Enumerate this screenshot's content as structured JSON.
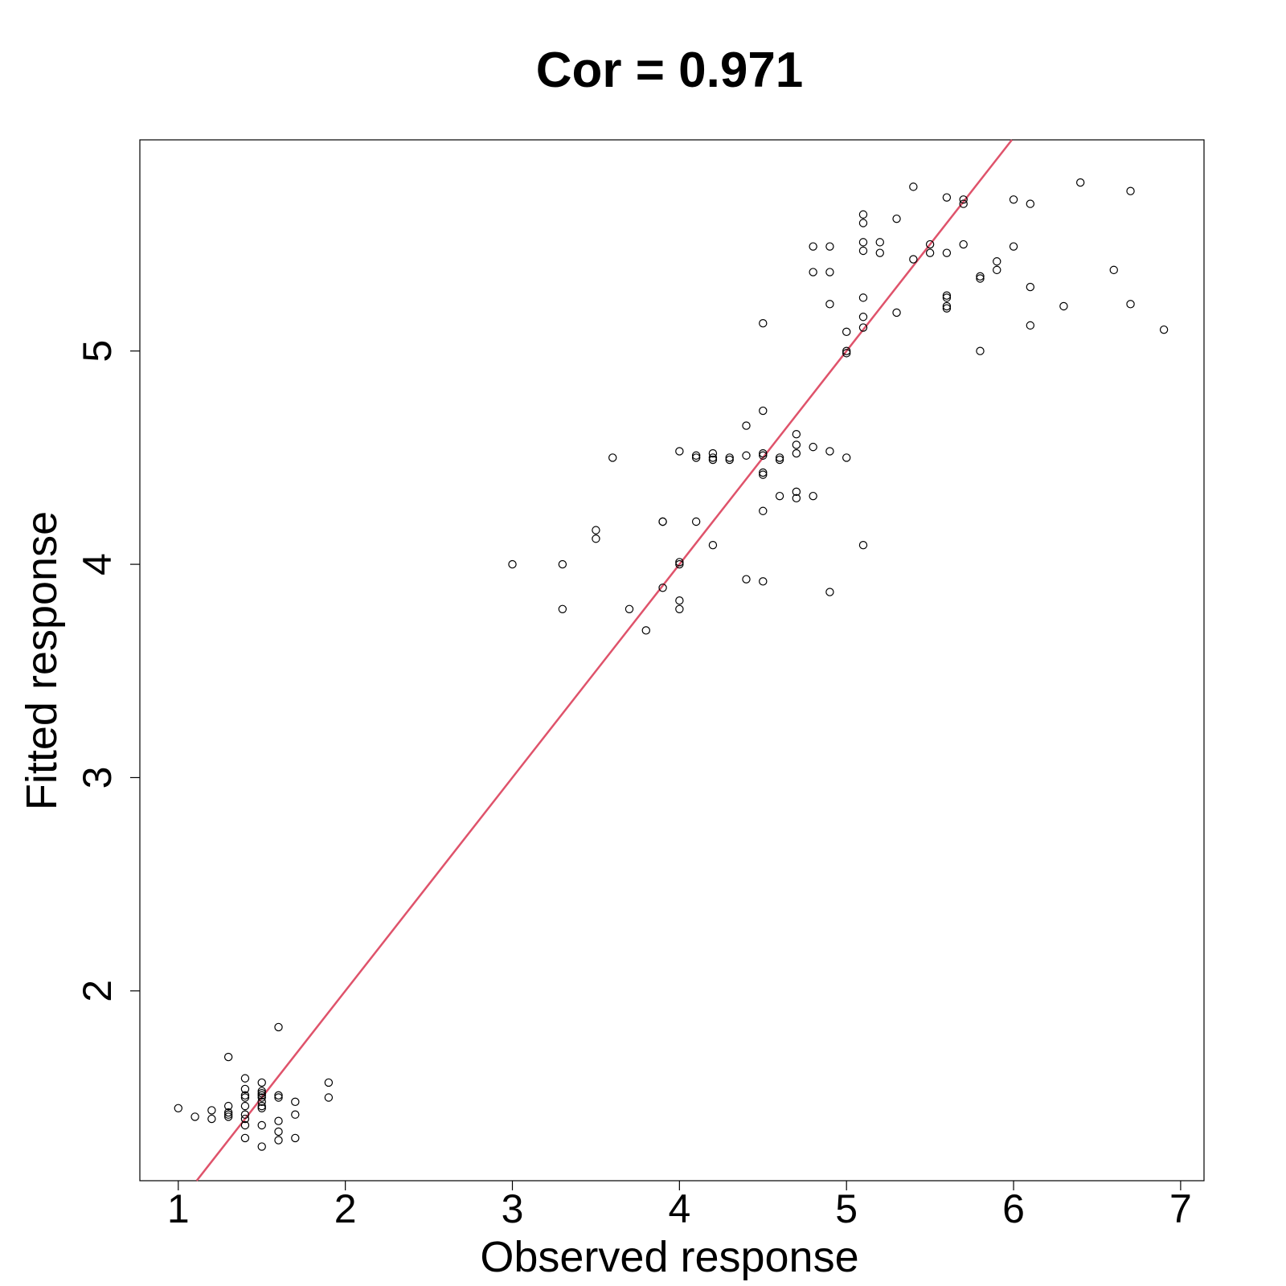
{
  "chart_data": {
    "type": "scatter",
    "title": "Cor = 0.971",
    "xlabel": "Observed response",
    "ylabel": "Fitted response",
    "xlim": [
      0.77,
      7.14
    ],
    "ylim": [
      1.11,
      5.99
    ],
    "x_ticks": [
      1,
      2,
      3,
      4,
      5,
      6,
      7
    ],
    "y_ticks": [
      2,
      3,
      4,
      5
    ],
    "grid": false,
    "legend": "none",
    "reference_line": {
      "intercept": 0,
      "slope": 1,
      "color": "#DF536B"
    },
    "point_color": "#000000",
    "points": [
      [
        1.0,
        1.45
      ],
      [
        1.1,
        1.41
      ],
      [
        1.2,
        1.44
      ],
      [
        1.2,
        1.4
      ],
      [
        1.3,
        1.69
      ],
      [
        1.3,
        1.46
      ],
      [
        1.3,
        1.43
      ],
      [
        1.3,
        1.41
      ],
      [
        1.3,
        1.42
      ],
      [
        1.4,
        1.59
      ],
      [
        1.4,
        1.54
      ],
      [
        1.4,
        1.5
      ],
      [
        1.4,
        1.51
      ],
      [
        1.4,
        1.46
      ],
      [
        1.4,
        1.42
      ],
      [
        1.4,
        1.4
      ],
      [
        1.4,
        1.37
      ],
      [
        1.4,
        1.31
      ],
      [
        1.5,
        1.57
      ],
      [
        1.5,
        1.53
      ],
      [
        1.5,
        1.52
      ],
      [
        1.5,
        1.51
      ],
      [
        1.5,
        1.5
      ],
      [
        1.5,
        1.48
      ],
      [
        1.5,
        1.46
      ],
      [
        1.5,
        1.45
      ],
      [
        1.5,
        1.37
      ],
      [
        1.5,
        1.27
      ],
      [
        1.6,
        1.83
      ],
      [
        1.6,
        1.51
      ],
      [
        1.6,
        1.5
      ],
      [
        1.6,
        1.39
      ],
      [
        1.6,
        1.34
      ],
      [
        1.6,
        1.3
      ],
      [
        1.7,
        1.48
      ],
      [
        1.7,
        1.42
      ],
      [
        1.7,
        1.31
      ],
      [
        1.9,
        1.57
      ],
      [
        1.9,
        1.5
      ],
      [
        3.0,
        4.0
      ],
      [
        3.3,
        4.0
      ],
      [
        3.3,
        3.79
      ],
      [
        3.5,
        4.16
      ],
      [
        3.5,
        4.12
      ],
      [
        3.6,
        4.5
      ],
      [
        3.7,
        3.79
      ],
      [
        3.8,
        3.69
      ],
      [
        3.9,
        4.2
      ],
      [
        3.9,
        4.2
      ],
      [
        3.9,
        3.89
      ],
      [
        4.0,
        4.53
      ],
      [
        4.0,
        4.01
      ],
      [
        4.0,
        4.0
      ],
      [
        4.0,
        3.83
      ],
      [
        4.0,
        3.79
      ],
      [
        4.1,
        4.51
      ],
      [
        4.1,
        4.5
      ],
      [
        4.1,
        4.2
      ],
      [
        4.2,
        4.52
      ],
      [
        4.2,
        4.5
      ],
      [
        4.2,
        4.49
      ],
      [
        4.2,
        4.09
      ],
      [
        4.3,
        4.5
      ],
      [
        4.3,
        4.49
      ],
      [
        4.4,
        4.65
      ],
      [
        4.4,
        4.51
      ],
      [
        4.4,
        3.93
      ],
      [
        4.5,
        5.13
      ],
      [
        4.5,
        4.72
      ],
      [
        4.5,
        4.52
      ],
      [
        4.5,
        4.51
      ],
      [
        4.5,
        4.43
      ],
      [
        4.5,
        4.42
      ],
      [
        4.5,
        4.25
      ],
      [
        4.5,
        3.92
      ],
      [
        4.6,
        4.5
      ],
      [
        4.6,
        4.49
      ],
      [
        4.6,
        4.32
      ],
      [
        4.7,
        4.61
      ],
      [
        4.7,
        4.56
      ],
      [
        4.7,
        4.52
      ],
      [
        4.7,
        4.34
      ],
      [
        4.7,
        4.31
      ],
      [
        4.8,
        5.49
      ],
      [
        4.8,
        5.37
      ],
      [
        4.8,
        4.55
      ],
      [
        4.8,
        4.32
      ],
      [
        4.9,
        5.49
      ],
      [
        4.9,
        5.37
      ],
      [
        4.9,
        5.22
      ],
      [
        4.9,
        4.53
      ],
      [
        4.9,
        3.87
      ],
      [
        5.0,
        5.09
      ],
      [
        5.0,
        5.0
      ],
      [
        5.0,
        4.99
      ],
      [
        5.0,
        4.5
      ],
      [
        5.1,
        5.64
      ],
      [
        5.1,
        5.6
      ],
      [
        5.1,
        5.51
      ],
      [
        5.1,
        5.47
      ],
      [
        5.1,
        5.25
      ],
      [
        5.1,
        5.16
      ],
      [
        5.1,
        5.11
      ],
      [
        5.1,
        4.09
      ],
      [
        5.2,
        5.51
      ],
      [
        5.2,
        5.46
      ],
      [
        5.3,
        5.62
      ],
      [
        5.3,
        5.18
      ],
      [
        5.4,
        5.77
      ],
      [
        5.4,
        5.43
      ],
      [
        5.5,
        5.5
      ],
      [
        5.5,
        5.46
      ],
      [
        5.6,
        5.72
      ],
      [
        5.6,
        5.46
      ],
      [
        5.6,
        5.26
      ],
      [
        5.6,
        5.25
      ],
      [
        5.6,
        5.21
      ],
      [
        5.6,
        5.2
      ],
      [
        5.7,
        5.71
      ],
      [
        5.7,
        5.69
      ],
      [
        5.7,
        5.5
      ],
      [
        5.8,
        5.35
      ],
      [
        5.8,
        5.34
      ],
      [
        5.8,
        5.0
      ],
      [
        5.9,
        5.42
      ],
      [
        5.9,
        5.38
      ],
      [
        6.0,
        5.71
      ],
      [
        6.0,
        5.49
      ],
      [
        6.1,
        5.69
      ],
      [
        6.1,
        5.3
      ],
      [
        6.1,
        5.12
      ],
      [
        6.3,
        5.21
      ],
      [
        6.4,
        5.79
      ],
      [
        6.6,
        5.38
      ],
      [
        6.7,
        5.75
      ],
      [
        6.7,
        5.22
      ],
      [
        6.9,
        5.1
      ]
    ]
  }
}
